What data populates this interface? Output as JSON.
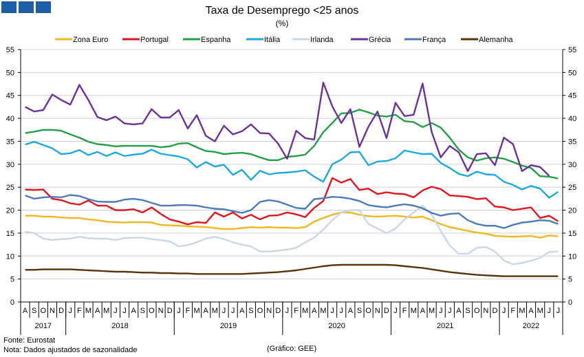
{
  "chart_data": {
    "type": "line",
    "title": "Taxa de Desemprego <25 anos",
    "subtitle": "(%)",
    "ylim": [
      0,
      55
    ],
    "yticks": [
      0,
      5,
      10,
      15,
      20,
      25,
      30,
      35,
      40,
      45,
      50,
      55
    ],
    "grid": true,
    "legend_position": "top",
    "month_labels": [
      "A",
      "S",
      "O",
      "N",
      "D",
      "J",
      "F",
      "M",
      "A",
      "M",
      "J",
      "J",
      "A",
      "S",
      "O",
      "N",
      "D",
      "J",
      "F",
      "M",
      "A",
      "M",
      "J",
      "J",
      "A",
      "S",
      "O",
      "N",
      "D",
      "J",
      "F",
      "M",
      "A",
      "M",
      "J",
      "J",
      "A",
      "S",
      "O",
      "N",
      "D",
      "J",
      "F",
      "M",
      "A",
      "M",
      "J",
      "J",
      "A",
      "S",
      "O",
      "N",
      "D",
      "J",
      "F",
      "M",
      "A",
      "M",
      "J",
      "J"
    ],
    "year_groups": [
      {
        "label": "2017",
        "start": 0,
        "end": 4
      },
      {
        "label": "2018",
        "start": 5,
        "end": 16
      },
      {
        "label": "2019",
        "start": 17,
        "end": 28
      },
      {
        "label": "2020",
        "start": 29,
        "end": 40
      },
      {
        "label": "2021",
        "start": 41,
        "end": 52
      },
      {
        "label": "2022",
        "start": 53,
        "end": 59
      }
    ],
    "series": [
      {
        "name": "Zona Euro",
        "color": "#f2b71f",
        "values": [
          18.8,
          18.8,
          18.6,
          18.6,
          18.4,
          18.3,
          18.3,
          18.0,
          17.8,
          17.5,
          17.4,
          17.3,
          17.4,
          17.4,
          17.3,
          16.8,
          16.7,
          16.6,
          16.5,
          16.4,
          16.3,
          16.1,
          15.9,
          15.9,
          16.1,
          16.3,
          16.2,
          16.3,
          16.2,
          16.2,
          16.1,
          16.3,
          17.5,
          18.3,
          19.0,
          19.5,
          19.5,
          19.0,
          18.7,
          18.6,
          18.7,
          18.8,
          18.6,
          18.4,
          18.6,
          17.8,
          17.0,
          16.3,
          15.9,
          15.5,
          15.1,
          14.9,
          14.4,
          14.3,
          14.2,
          14.3,
          14.4,
          14.0,
          14.5,
          14.3
        ]
      },
      {
        "name": "Portugal",
        "color": "#e3131b",
        "values": [
          24.5,
          24.4,
          24.5,
          22.5,
          22.2,
          21.5,
          21.2,
          22.1,
          21.0,
          21.0,
          20.0,
          20.0,
          20.2,
          19.5,
          20.6,
          19.2,
          18.0,
          17.5,
          16.9,
          17.4,
          17.2,
          19.5,
          18.6,
          19.5,
          18.2,
          19.0,
          18.0,
          18.8,
          18.9,
          19.5,
          19.1,
          18.5,
          20.5,
          22.0,
          27.0,
          26.0,
          26.8,
          24.4,
          24.7,
          23.5,
          23.9,
          23.6,
          23.5,
          22.8,
          24.3,
          25.1,
          24.6,
          23.2,
          23.1,
          22.9,
          22.4,
          22.6,
          20.8,
          20.6,
          20.0,
          20.3,
          20.6,
          18.3,
          18.8,
          17.6
        ]
      },
      {
        "name": "Espanha",
        "color": "#1fa043",
        "values": [
          36.8,
          37.1,
          37.5,
          37.5,
          37.3,
          36.5,
          35.8,
          34.9,
          34.4,
          34.2,
          33.9,
          34.0,
          34.0,
          34.0,
          34.0,
          33.7,
          33.9,
          34.5,
          34.6,
          33.7,
          32.9,
          32.7,
          32.2,
          32.4,
          32.5,
          32.2,
          31.5,
          30.9,
          30.9,
          31.6,
          31.8,
          32.1,
          34.0,
          37.0,
          39.0,
          41.1,
          41.2,
          41.9,
          41.3,
          40.6,
          40.4,
          40.8,
          39.4,
          39.2,
          38.1,
          39.0,
          38.0,
          35.8,
          33.2,
          31.5,
          30.8,
          31.3,
          31.5,
          31.2,
          30.5,
          29.7,
          29.2,
          27.4,
          27.3,
          26.9
        ]
      },
      {
        "name": "Itália",
        "color": "#1ba8e0",
        "values": [
          34.3,
          34.9,
          34.2,
          33.5,
          32.2,
          32.4,
          33.1,
          32.0,
          32.7,
          31.8,
          32.6,
          31.8,
          32.1,
          32.3,
          33.2,
          32.3,
          32.0,
          31.7,
          31.1,
          29.3,
          30.5,
          29.5,
          29.9,
          27.7,
          28.8,
          26.6,
          28.6,
          27.8,
          28.1,
          28.2,
          28.4,
          28.7,
          27.3,
          26.2,
          30.0,
          31.0,
          32.6,
          32.7,
          29.8,
          30.6,
          30.7,
          31.3,
          33.0,
          32.6,
          32.2,
          32.3,
          30.3,
          29.2,
          27.9,
          27.4,
          28.4,
          27.8,
          27.7,
          26.2,
          25.5,
          24.5,
          25.3,
          24.7,
          22.7,
          24.0
        ]
      },
      {
        "name": "Irlanda",
        "color": "#c8d6e5",
        "values": [
          15.3,
          15.0,
          13.8,
          13.5,
          13.7,
          13.8,
          14.2,
          13.9,
          13.8,
          13.8,
          13.5,
          13.9,
          14.0,
          14.0,
          13.7,
          13.5,
          13.2,
          12.1,
          12.4,
          13.0,
          13.8,
          14.2,
          13.7,
          13.0,
          12.5,
          12.1,
          11.0,
          11.0,
          11.2,
          11.4,
          11.8,
          13.0,
          14.0,
          15.8,
          17.8,
          19.5,
          20.0,
          20.0,
          17.0,
          16.0,
          15.0,
          16.0,
          18.0,
          19.5,
          21.0,
          19.0,
          15.5,
          12.3,
          10.5,
          10.5,
          11.8,
          12.0,
          11.0,
          9.0,
          8.2,
          8.5,
          9.0,
          9.6,
          10.9,
          11.0
        ]
      },
      {
        "name": "Grécia",
        "color": "#6a3198",
        "values": [
          42.5,
          41.5,
          41.8,
          45.2,
          44.0,
          43.0,
          47.3,
          44.0,
          40.3,
          39.6,
          40.4,
          38.9,
          38.7,
          38.9,
          42.0,
          40.2,
          40.2,
          41.8,
          37.8,
          40.7,
          36.2,
          35.0,
          38.4,
          36.5,
          37.2,
          38.7,
          36.8,
          36.7,
          34.5,
          31.2,
          37.3,
          35.7,
          35.4,
          47.8,
          42.6,
          39.0,
          42.0,
          33.8,
          38.2,
          41.5,
          35.7,
          43.4,
          40.5,
          40.8,
          47.6,
          37.0,
          31.5,
          34.0,
          32.6,
          28.5,
          32.2,
          32.4,
          29.8,
          35.8,
          34.4,
          28.5,
          29.8,
          29.4,
          27.5,
          null
        ]
      },
      {
        "name": "França",
        "color": "#4a7ab8",
        "values": [
          23.2,
          22.5,
          22.8,
          22.9,
          22.8,
          23.3,
          23.1,
          22.4,
          21.9,
          21.8,
          21.8,
          22.3,
          22.5,
          22.2,
          21.6,
          21.0,
          21.0,
          21.1,
          21.1,
          21.0,
          20.6,
          20.3,
          20.2,
          19.8,
          19.4,
          20.0,
          21.8,
          22.2,
          21.9,
          21.2,
          20.5,
          20.3,
          22.4,
          22.6,
          22.9,
          22.8,
          22.5,
          22.0,
          21.1,
          20.8,
          20.6,
          21.0,
          21.3,
          21.0,
          20.4,
          19.4,
          18.8,
          19.2,
          19.3,
          17.8,
          17.0,
          16.6,
          16.6,
          16.1,
          16.8,
          17.3,
          17.5,
          17.8,
          17.7,
          17.0
        ]
      },
      {
        "name": "Alemanha",
        "color": "#5a3208",
        "values": [
          7.0,
          7.0,
          7.1,
          7.1,
          7.1,
          7.1,
          7.0,
          6.9,
          6.8,
          6.7,
          6.6,
          6.6,
          6.5,
          6.4,
          6.4,
          6.3,
          6.3,
          6.2,
          6.2,
          6.1,
          6.1,
          6.1,
          6.1,
          6.1,
          6.1,
          6.2,
          6.3,
          6.4,
          6.5,
          6.7,
          6.9,
          7.2,
          7.5,
          7.8,
          8.0,
          8.1,
          8.1,
          8.1,
          8.1,
          8.1,
          8.1,
          8.0,
          7.8,
          7.6,
          7.4,
          7.1,
          6.8,
          6.5,
          6.3,
          6.1,
          5.9,
          5.8,
          5.7,
          5.6,
          5.6,
          5.6,
          5.6,
          5.6,
          5.6,
          5.6
        ]
      }
    ]
  },
  "footer": {
    "source": "Fonte: Eurostat",
    "note": "Nota: Dados ajustados de sazonalidade",
    "credit": "(Gráfico: GEE)"
  }
}
